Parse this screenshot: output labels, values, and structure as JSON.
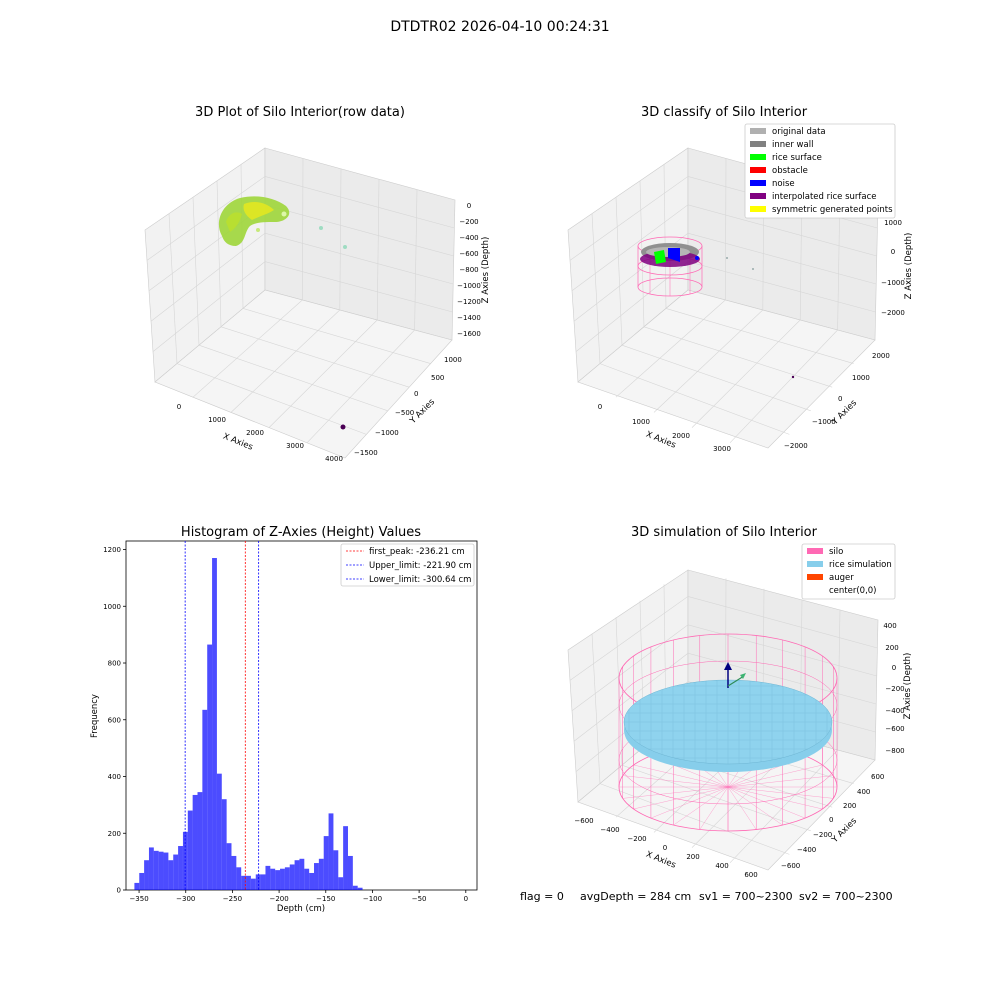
{
  "suptitle": "DTDTR02 2026-04-10 00:24:31",
  "footer": {
    "flag": "flag = 0",
    "avg_depth": "avgDepth = 284 cm",
    "sv1": "sv1 = 700~2300",
    "sv2": "sv2 = 700~2300"
  },
  "colors": {
    "histogram_bars": "#0000ff",
    "first_peak_line": "#ff0000",
    "limit_lines": "#0000ff",
    "silo": "#ff69b4",
    "rice_simulation": "#87ceeb",
    "auger": "#ff4500",
    "original_data": "#b0b0b0",
    "inner_wall": "#808080",
    "rice_surface": "#00ff00",
    "obstacle": "#ff0000",
    "noise": "#0000ff",
    "interpolated_rice_surface": "#800080",
    "symmetric_generated_points": "#ffff00"
  },
  "panels": {
    "raw": {
      "title": "3D Plot of Silo Interior(row data)",
      "xlabel": "X Axies",
      "ylabel": "Y Axies",
      "zlabel": "Z Axies (Depth)",
      "xticks": [
        "0",
        "1000",
        "2000",
        "3000",
        "4000"
      ],
      "yticks": [
        "−1500",
        "−1000",
        "−500",
        "0",
        "500",
        "1000"
      ],
      "zticks": [
        "0",
        "−200",
        "−400",
        "−600",
        "−800",
        "−1000",
        "−1200",
        "−1400",
        "−1600"
      ]
    },
    "classify": {
      "title": "3D classify of Silo Interior",
      "xlabel": "X Axies",
      "ylabel": "Y Axies",
      "zlabel": "Z Axies (Depth)",
      "xticks": [
        "0",
        "1000",
        "2000",
        "3000"
      ],
      "yticks": [
        "−2000",
        "−1000",
        "0",
        "1000",
        "2000"
      ],
      "zticks": [
        "1000",
        "0",
        "−1000",
        "−2000"
      ],
      "legend": [
        {
          "label": "original data",
          "color": "#b0b0b0"
        },
        {
          "label": "inner wall",
          "color": "#808080"
        },
        {
          "label": "rice surface",
          "color": "#00ff00"
        },
        {
          "label": "obstacle",
          "color": "#ff0000"
        },
        {
          "label": "noise",
          "color": "#0000ff"
        },
        {
          "label": "interpolated rice surface",
          "color": "#800080"
        },
        {
          "label": "symmetric generated points",
          "color": "#ffff00"
        }
      ]
    },
    "simulation": {
      "title": "3D simulation of Silo Interior",
      "xlabel": "X Axies",
      "ylabel": "Y Axies",
      "zlabel": "Z Axies (Depth)",
      "xticks": [
        "−600",
        "−400",
        "−200",
        "0",
        "200",
        "400",
        "600"
      ],
      "yticks": [
        "−600",
        "−400",
        "−200",
        "0",
        "200",
        "400",
        "600"
      ],
      "zticks": [
        "400",
        "200",
        "0",
        "−200",
        "−400",
        "−600",
        "−800"
      ],
      "legend": [
        {
          "label": "silo",
          "color": "#ff69b4"
        },
        {
          "label": "rice simulation",
          "color": "#87ceeb"
        },
        {
          "label": "auger",
          "color": "#ff4500"
        },
        {
          "label": "center(0,0)",
          "color": ""
        }
      ]
    }
  },
  "chart_data": {
    "type": "bar",
    "title": "Histogram of Z-Axies (Height) Values",
    "xlabel": "Depth (cm)",
    "ylabel": "Frequency",
    "xlim": [
      -364,
      12
    ],
    "ylim": [
      0,
      1230
    ],
    "xticks": [
      -350,
      -300,
      -250,
      -200,
      -150,
      -100,
      -50,
      0
    ],
    "xtick_labels": [
      "−350",
      "−300",
      "−250",
      "−200",
      "−150",
      "−100",
      "−50",
      "0"
    ],
    "yticks": [
      0,
      200,
      400,
      600,
      800,
      1000,
      1200
    ],
    "bin_start": -355,
    "bin_width": 5.2,
    "values": [
      25,
      60,
      105,
      150,
      138,
      135,
      132,
      105,
      125,
      155,
      205,
      280,
      335,
      345,
      635,
      865,
      1170,
      410,
      320,
      165,
      120,
      80,
      50,
      50,
      40,
      55,
      55,
      85,
      75,
      70,
      75,
      80,
      90,
      105,
      110,
      75,
      60,
      95,
      110,
      190,
      270,
      140,
      45,
      225,
      120,
      15,
      8
    ],
    "vlines": [
      {
        "label": "first_peak: -236.21 cm",
        "x": -236.21,
        "color": "#ff0000"
      },
      {
        "label": "Upper_limit: -221.90 cm",
        "x": -221.9,
        "color": "#0000ff"
      },
      {
        "label": "Lower_limit: -300.64 cm",
        "x": -300.64,
        "color": "#0000ff"
      }
    ]
  }
}
